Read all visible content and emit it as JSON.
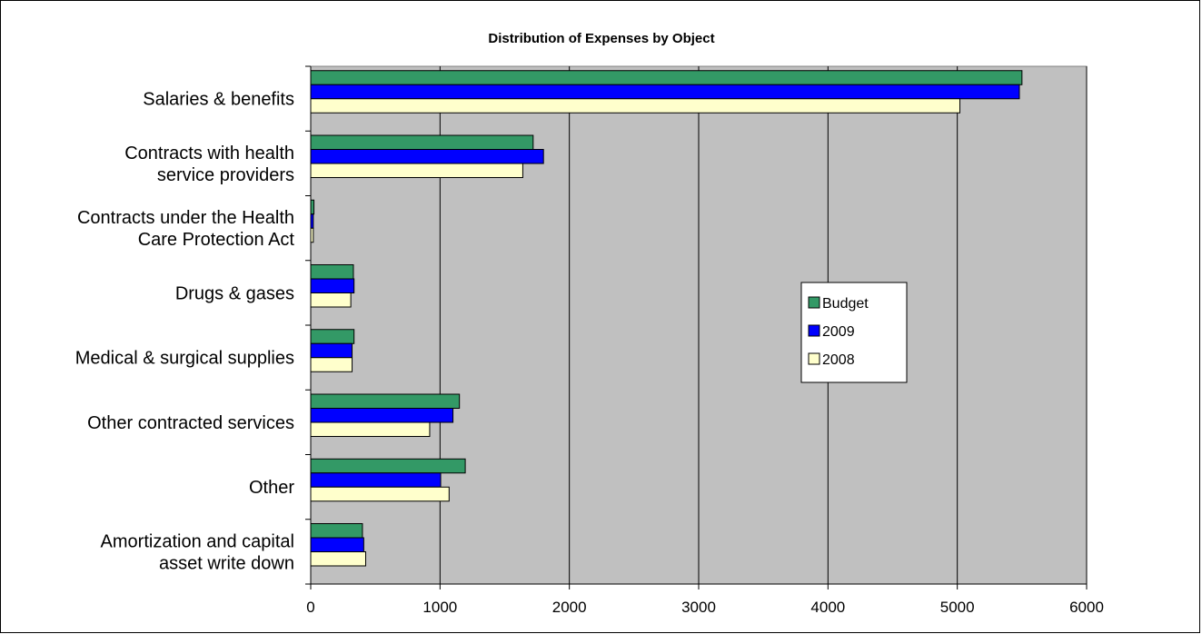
{
  "chart_data": {
    "type": "bar",
    "orientation": "horizontal",
    "title": "Distribution of Expenses by Object",
    "xlabel": "",
    "ylabel": "",
    "categories": [
      [
        "Salaries & benefits"
      ],
      [
        "Contracts with health",
        "service providers"
      ],
      [
        "Contracts under the Health",
        "Care Protection Act"
      ],
      [
        "Drugs & gases"
      ],
      [
        "Medical & surgical supplies"
      ],
      [
        "Other contracted services"
      ],
      [
        "Other"
      ],
      [
        "Amortization and capital",
        "asset write down"
      ]
    ],
    "series": [
      {
        "name": "Budget",
        "color": "#339966",
        "values": [
          5500,
          1720,
          25,
          330,
          335,
          1150,
          1195,
          400
        ]
      },
      {
        "name": "2009",
        "color": "#0000FF",
        "values": [
          5480,
          1800,
          20,
          335,
          320,
          1100,
          1005,
          410
        ]
      },
      {
        "name": "2008",
        "color": "#FFFFCC",
        "values": [
          5020,
          1640,
          20,
          310,
          320,
          920,
          1070,
          425
        ]
      }
    ],
    "xlim": [
      0,
      6000
    ],
    "xticks": [
      0,
      1000,
      2000,
      3000,
      4000,
      5000,
      6000
    ],
    "grid": true,
    "plot_background": "#C0C0C0",
    "legend_position": "right"
  }
}
